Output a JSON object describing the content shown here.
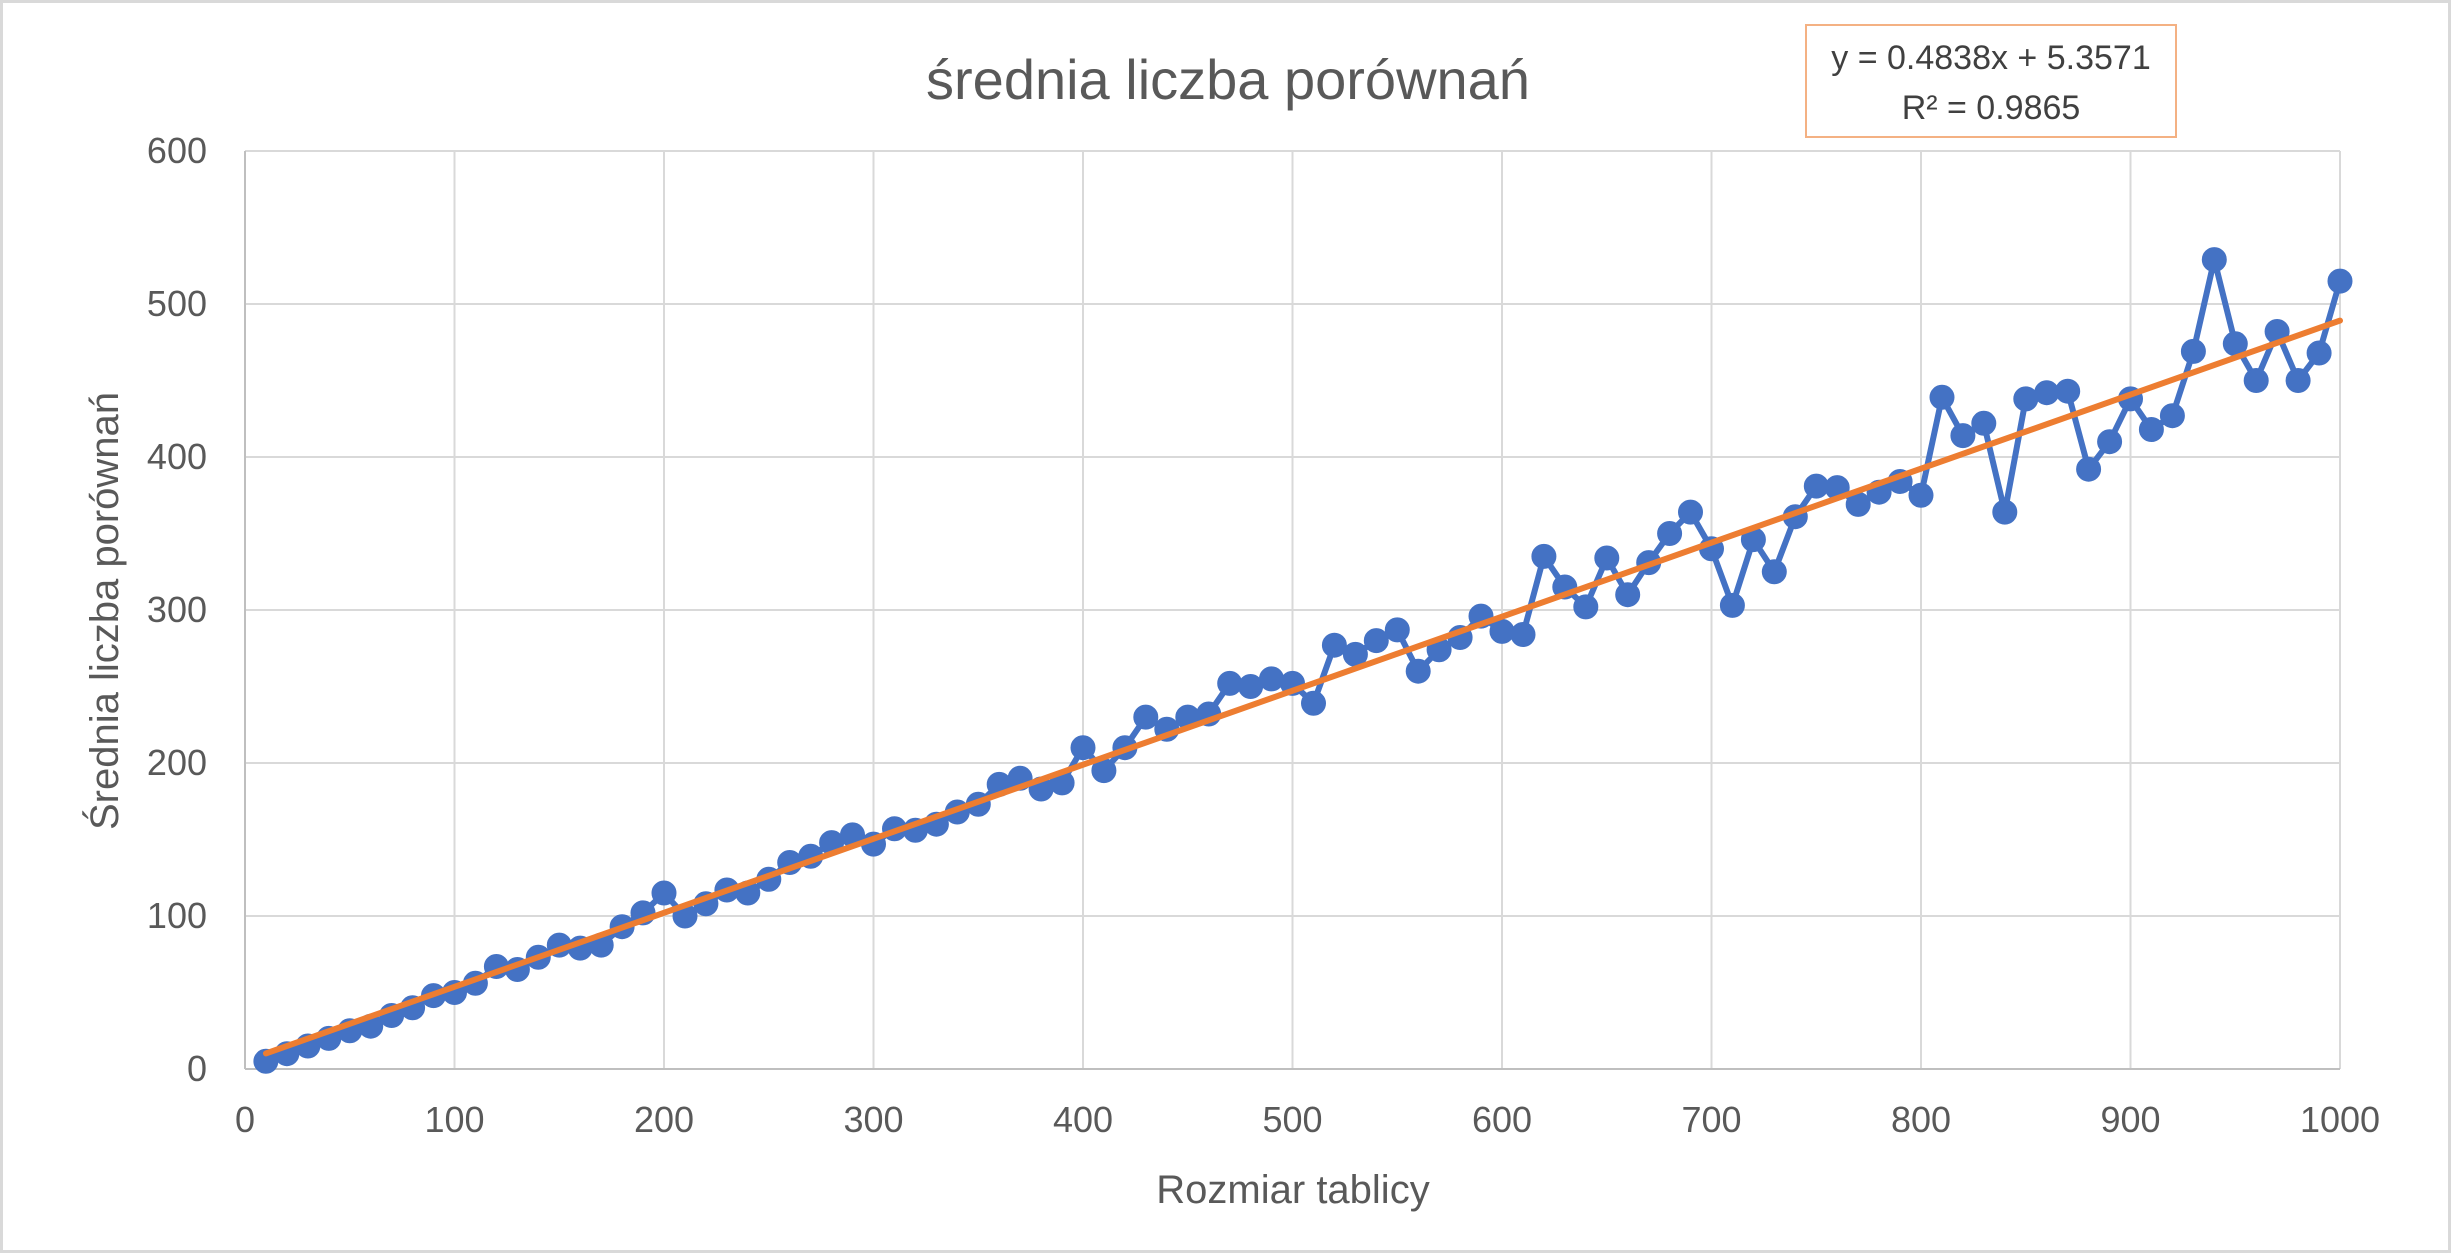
{
  "chart_data": {
    "type": "scatter",
    "title": "średnia liczba porównań",
    "xlabel": "Rozmiar tablicy",
    "ylabel": "Średnia liczba porównań",
    "xlim": [
      0,
      1000
    ],
    "ylim": [
      0,
      600
    ],
    "xticks": [
      0,
      100,
      200,
      300,
      400,
      500,
      600,
      700,
      800,
      900,
      1000
    ],
    "yticks": [
      0,
      100,
      200,
      300,
      400,
      500,
      600
    ],
    "grid": true,
    "legend": "none",
    "series": [
      {
        "color": "#4472C4",
        "style": "line-markers",
        "x": [
          10,
          20,
          30,
          40,
          50,
          60,
          70,
          80,
          90,
          100,
          110,
          120,
          130,
          140,
          150,
          160,
          170,
          180,
          190,
          200,
          210,
          220,
          230,
          240,
          250,
          260,
          270,
          280,
          290,
          300,
          310,
          320,
          330,
          340,
          350,
          360,
          370,
          380,
          390,
          400,
          410,
          420,
          430,
          440,
          450,
          460,
          470,
          480,
          490,
          500,
          510,
          520,
          530,
          540,
          550,
          560,
          570,
          580,
          590,
          600,
          610,
          620,
          630,
          640,
          650,
          660,
          670,
          680,
          690,
          700,
          710,
          720,
          730,
          740,
          750,
          760,
          770,
          780,
          790,
          800,
          810,
          820,
          830,
          840,
          850,
          860,
          870,
          880,
          890,
          900,
          910,
          920,
          930,
          940,
          950,
          960,
          970,
          980,
          990,
          1000
        ],
        "y": [
          5,
          10,
          15,
          20,
          25,
          28,
          35,
          40,
          48,
          50,
          56,
          67,
          65,
          73,
          81,
          79,
          81,
          93,
          102,
          115,
          100,
          108,
          117,
          115,
          124,
          135,
          139,
          148,
          153,
          147,
          157,
          156,
          160,
          168,
          173,
          186,
          190,
          183,
          187,
          210,
          195,
          210,
          230,
          222,
          230,
          232,
          252,
          250,
          255,
          252,
          239,
          277,
          271,
          280,
          287,
          260,
          274,
          282,
          296,
          286,
          284,
          335,
          315,
          302,
          334,
          310,
          331,
          350,
          364,
          340,
          303,
          346,
          325,
          361,
          381,
          380,
          369,
          377,
          384,
          375,
          439,
          414,
          422,
          364,
          438,
          442,
          443,
          392,
          410,
          438,
          418,
          427,
          469,
          529,
          474,
          450,
          482,
          450,
          468,
          515
        ]
      }
    ],
    "trendline": {
      "type": "linear",
      "color": "#ED7D31",
      "slope": 0.4838,
      "intercept": 5.3571,
      "equation": "y = 0.4838x + 5.3571",
      "r_squared": "R² = 0.9865"
    }
  }
}
